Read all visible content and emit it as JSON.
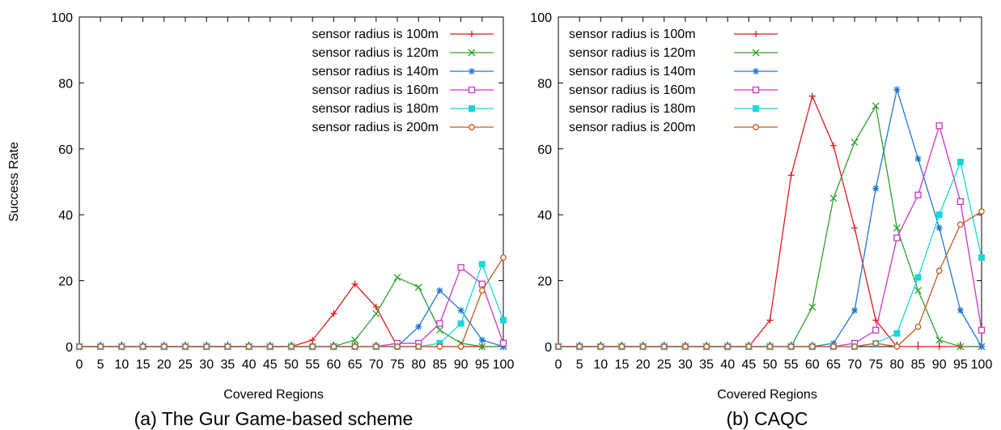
{
  "colors": {
    "r100": "#e31a1c",
    "r120": "#2ca02c",
    "r140": "#1f77d4",
    "r160": "#cc33cc",
    "r180": "#18d6dc",
    "r200": "#c8581e",
    "axis": "#000000"
  },
  "chart_data": [
    {
      "type": "line",
      "caption": "(a) The Gur Game-based scheme",
      "xlabel": "Covered Regions",
      "ylabel": "Success Rate",
      "ylim": [
        0,
        100
      ],
      "x": [
        "0",
        "5",
        "10",
        "15",
        "20",
        "25",
        "30",
        "35",
        "40",
        "45",
        "50",
        "55",
        "60",
        "65",
        "70",
        "75",
        "80",
        "85",
        "90",
        "95",
        "100"
      ],
      "yticks": [
        "0",
        "20",
        "40",
        "60",
        "80",
        "100"
      ],
      "legend_position": "top-right",
      "grid": false,
      "series": [
        {
          "name": "sensor radius is 100m",
          "marker": "plus",
          "color_key": "r100",
          "values": [
            0,
            0,
            0,
            0,
            0,
            0,
            0,
            0,
            0,
            0,
            0,
            2,
            10,
            19,
            12,
            0,
            0,
            0,
            0,
            0,
            0
          ]
        },
        {
          "name": "sensor radius is 120m",
          "marker": "cross",
          "color_key": "r120",
          "values": [
            0,
            0,
            0,
            0,
            0,
            0,
            0,
            0,
            0,
            0,
            0,
            0,
            0,
            2,
            10,
            21,
            18,
            5,
            1,
            0,
            0
          ]
        },
        {
          "name": "sensor radius is 140m",
          "marker": "star",
          "color_key": "r140",
          "values": [
            0,
            0,
            0,
            0,
            0,
            0,
            0,
            0,
            0,
            0,
            0,
            0,
            0,
            0,
            0,
            0,
            6,
            17,
            11,
            2,
            0
          ]
        },
        {
          "name": "sensor radius is 160m",
          "marker": "open-square",
          "color_key": "r160",
          "values": [
            0,
            0,
            0,
            0,
            0,
            0,
            0,
            0,
            0,
            0,
            0,
            0,
            0,
            0,
            0,
            1,
            1,
            7,
            24,
            19,
            1
          ]
        },
        {
          "name": "sensor radius is 180m",
          "marker": "filled-square",
          "color_key": "r180",
          "values": [
            0,
            0,
            0,
            0,
            0,
            0,
            0,
            0,
            0,
            0,
            0,
            0,
            0,
            0,
            0,
            0,
            0,
            1,
            7,
            25,
            8
          ]
        },
        {
          "name": "sensor radius is 200m",
          "marker": "circle",
          "color_key": "r200",
          "values": [
            0,
            0,
            0,
            0,
            0,
            0,
            0,
            0,
            0,
            0,
            0,
            0,
            0,
            0,
            0,
            0,
            0,
            0,
            0,
            17,
            27
          ]
        }
      ]
    },
    {
      "type": "line",
      "caption": "(b) CAQC",
      "xlabel": "Covered Regions",
      "ylabel": "",
      "ylim": [
        0,
        100
      ],
      "x": [
        "0",
        "5",
        "10",
        "15",
        "20",
        "25",
        "30",
        "35",
        "40",
        "45",
        "50",
        "55",
        "60",
        "65",
        "70",
        "75",
        "80",
        "85",
        "90",
        "95",
        "100"
      ],
      "yticks": [
        "0",
        "20",
        "40",
        "60",
        "80",
        "100"
      ],
      "legend_position": "top-left",
      "grid": false,
      "series": [
        {
          "name": "sensor radius is 100m",
          "marker": "plus",
          "color_key": "r100",
          "values": [
            0,
            0,
            0,
            0,
            0,
            0,
            0,
            0,
            0,
            0,
            8,
            52,
            76,
            61,
            36,
            8,
            0,
            0,
            0,
            0,
            0
          ]
        },
        {
          "name": "sensor radius is 120m",
          "marker": "cross",
          "color_key": "r120",
          "values": [
            0,
            0,
            0,
            0,
            0,
            0,
            0,
            0,
            0,
            0,
            0,
            0,
            12,
            45,
            62,
            73,
            36,
            17,
            2,
            0,
            0
          ]
        },
        {
          "name": "sensor radius is 140m",
          "marker": "star",
          "color_key": "r140",
          "values": [
            0,
            0,
            0,
            0,
            0,
            0,
            0,
            0,
            0,
            0,
            0,
            0,
            0,
            1,
            11,
            48,
            78,
            57,
            36,
            11,
            0
          ]
        },
        {
          "name": "sensor radius is 160m",
          "marker": "open-square",
          "color_key": "r160",
          "values": [
            0,
            0,
            0,
            0,
            0,
            0,
            0,
            0,
            0,
            0,
            0,
            0,
            0,
            0,
            1,
            5,
            33,
            46,
            67,
            44,
            5
          ]
        },
        {
          "name": "sensor radius is 180m",
          "marker": "filled-square",
          "color_key": "r180",
          "values": [
            0,
            0,
            0,
            0,
            0,
            0,
            0,
            0,
            0,
            0,
            0,
            0,
            0,
            0,
            0,
            1,
            4,
            21,
            40,
            56,
            27
          ]
        },
        {
          "name": "sensor radius is 200m",
          "marker": "circle",
          "color_key": "r200",
          "values": [
            0,
            0,
            0,
            0,
            0,
            0,
            0,
            0,
            0,
            0,
            0,
            0,
            0,
            0,
            0,
            1,
            0,
            6,
            23,
            37,
            41
          ]
        }
      ]
    }
  ]
}
